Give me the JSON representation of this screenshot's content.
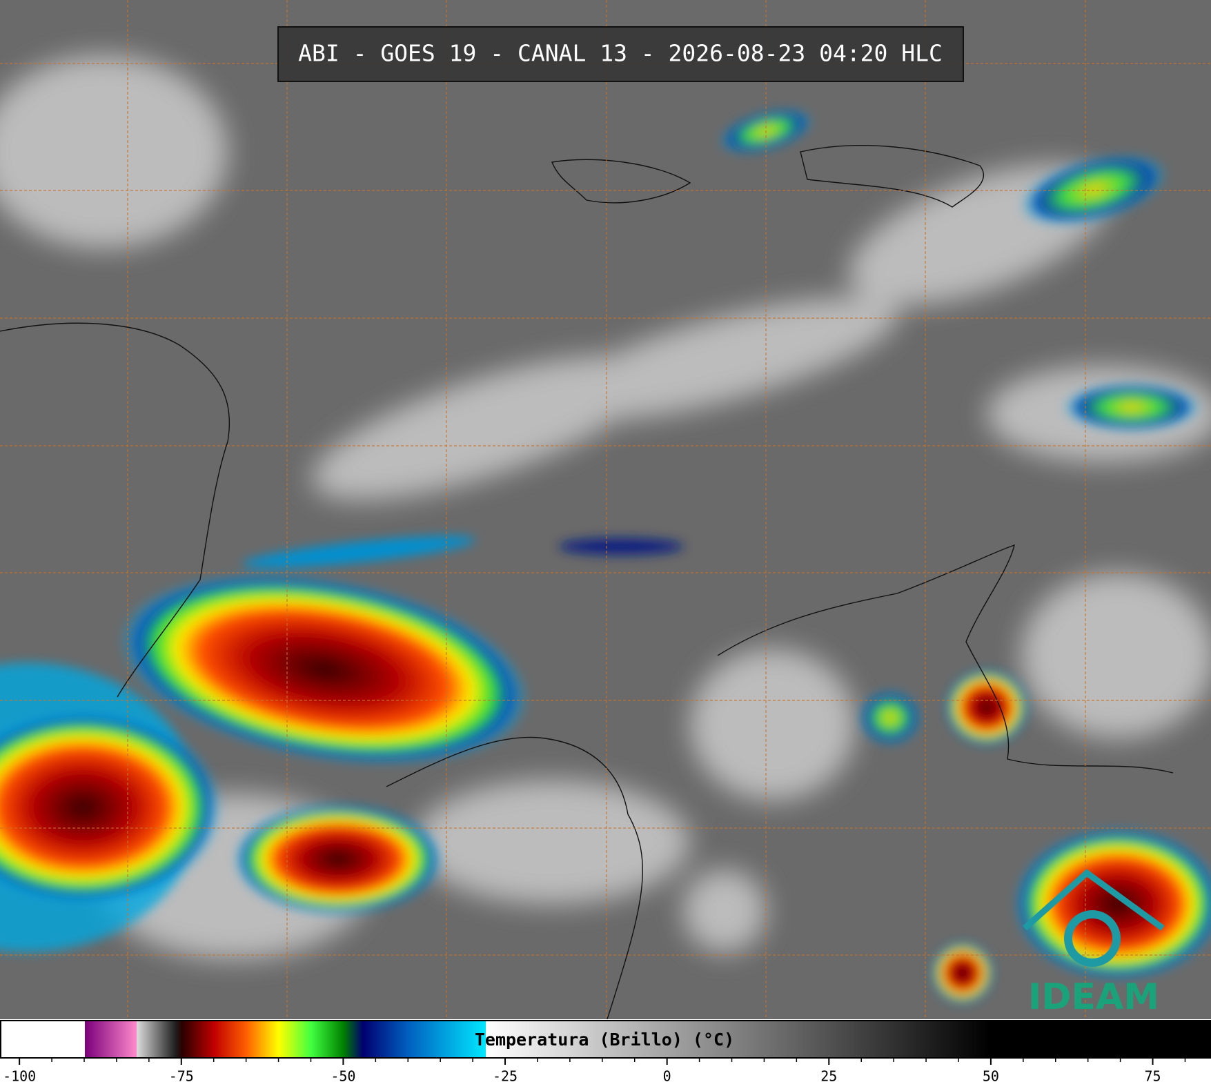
{
  "chart_data": {
    "type": "colorbar",
    "title": "ABI - GOES 19 - CANAL 13 - 2026-08-23 04:20 HLC",
    "colorbar_label": "Temperatura (Brillo) (°C)",
    "logo": "IDEAM",
    "xlim": [
      -103,
      84
    ],
    "xticks": [
      -100,
      -75,
      -50,
      -25,
      0,
      25,
      50,
      75
    ],
    "minor_xticks": [
      -95,
      -90,
      -85,
      -80,
      -70,
      -65,
      -60,
      -55,
      -45,
      -40,
      -35,
      -30,
      -20,
      -15,
      -10,
      -5,
      5,
      10,
      15,
      20,
      30,
      35,
      40,
      45,
      55,
      60,
      65,
      70,
      80
    ],
    "stops": [
      {
        "value": -103,
        "color": "#ffffff"
      },
      {
        "value": -90,
        "color": "#ffffff"
      },
      {
        "value": -90,
        "color": "#7a007a"
      },
      {
        "value": -82,
        "color": "#ff88cc"
      },
      {
        "value": -82,
        "color": "#dddddd"
      },
      {
        "value": -76,
        "color": "#202020"
      },
      {
        "value": -75,
        "color": "#2a0000"
      },
      {
        "value": -70,
        "color": "#c00000"
      },
      {
        "value": -65,
        "color": "#ff6000"
      },
      {
        "value": -60,
        "color": "#ffff00"
      },
      {
        "value": -55,
        "color": "#40ff40"
      },
      {
        "value": -50,
        "color": "#008000"
      },
      {
        "value": -47,
        "color": "#000070"
      },
      {
        "value": -40,
        "color": "#0060c0"
      },
      {
        "value": -28,
        "color": "#00e8ff"
      },
      {
        "value": -28,
        "color": "#ffffff"
      },
      {
        "value": 50,
        "color": "#000000"
      },
      {
        "value": 84,
        "color": "#000000"
      }
    ]
  }
}
